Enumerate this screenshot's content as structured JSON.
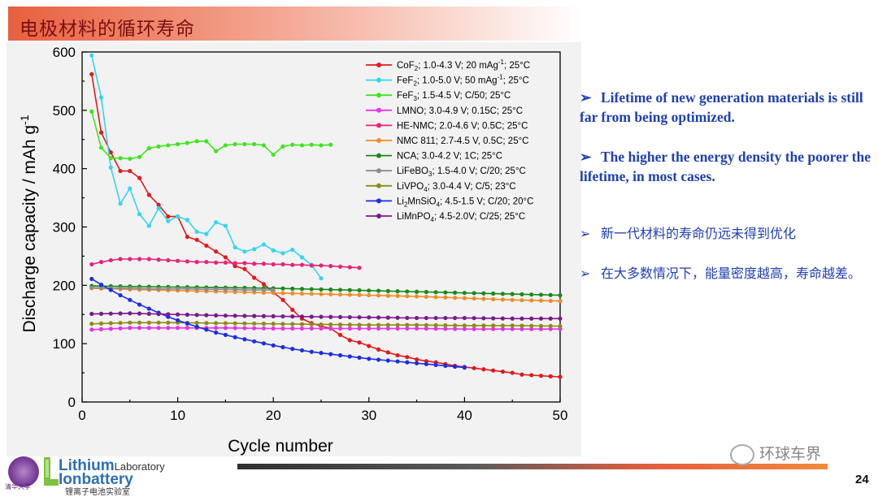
{
  "slide": {
    "title": "电极材料的循环寿命",
    "page_number": "24",
    "watermark": "环球车界",
    "logo": {
      "line1": "Lithium",
      "line1_suffix": "Laboratory",
      "line2": "Ionbattery",
      "cn": "锂离子电池实验室",
      "seal_text": "清华大学"
    },
    "bullets": [
      {
        "text": "Lifetime of new generation materials is still far from being optimized.",
        "lang": "en"
      },
      {
        "text": "The higher the energy density the poorer the lifetime, in most cases.",
        "lang": "en"
      },
      {
        "text": "新一代材料的寿命仍远未得到优化",
        "lang": "cn"
      },
      {
        "text": "在大多数情况下，能量密度越高，寿命越差。",
        "lang": "cn"
      }
    ],
    "bullet_marker": "➢"
  },
  "colors": {
    "title_text": "#7a1010",
    "bullet_text": "#1f3fb4",
    "accent_red": "#e35d3e"
  },
  "chart_data": {
    "type": "line",
    "title": "",
    "xlabel": "Cycle number",
    "ylabel": "Discharge capacity / mAh g-1",
    "xlim": [
      0,
      50
    ],
    "ylim": [
      0,
      600
    ],
    "xticks": [
      0,
      10,
      20,
      30,
      40,
      50
    ],
    "yticks": [
      0,
      100,
      200,
      300,
      400,
      500,
      600
    ],
    "legend_position": "top-right",
    "grid": false,
    "series": [
      {
        "name": "CoF2; 1.0-4.3 V; 20 mAg-1; 25°C",
        "color": "#e31a1c",
        "marker": "circle",
        "x": [
          1,
          2,
          3,
          4,
          5,
          6,
          7,
          8,
          9,
          10,
          11,
          12,
          13,
          14,
          15,
          16,
          17,
          18,
          19,
          20,
          21,
          22,
          23,
          24,
          25,
          26,
          27,
          28,
          29,
          30,
          31,
          32,
          33,
          34,
          35,
          36,
          37,
          38,
          39,
          40,
          41,
          42,
          43,
          44,
          45,
          46,
          47,
          48,
          49,
          50
        ],
        "y": [
          562,
          462,
          428,
          396,
          396,
          384,
          355,
          338,
          318,
          318,
          283,
          278,
          268,
          258,
          248,
          233,
          228,
          213,
          202,
          188,
          175,
          158,
          143,
          135,
          130,
          126,
          115,
          106,
          102,
          96,
          90,
          85,
          80,
          77,
          73,
          70,
          68,
          65,
          62,
          60,
          58,
          56,
          54,
          52,
          50,
          47,
          46,
          45,
          44,
          43
        ]
      },
      {
        "name": "FeF2; 1.0-5.0 V; 50 mAg-1; 25°C",
        "color": "#33d6f0",
        "marker": "circle",
        "x": [
          1,
          2,
          3,
          4,
          5,
          6,
          7,
          8,
          9,
          10,
          11,
          12,
          13,
          14,
          15,
          16,
          17,
          18,
          19,
          20,
          21,
          22,
          23,
          24,
          25
        ],
        "y": [
          594,
          522,
          402,
          340,
          366,
          322,
          302,
          332,
          310,
          318,
          312,
          292,
          288,
          308,
          302,
          265,
          258,
          262,
          270,
          260,
          255,
          261,
          248,
          235,
          212
        ]
      },
      {
        "name": "FeF3; 1.5-4.5 V; C/50; 25°C",
        "color": "#3fe61e",
        "marker": "circle",
        "x": [
          1,
          2,
          3,
          4,
          5,
          6,
          7,
          8,
          9,
          10,
          11,
          12,
          13,
          14,
          15,
          16,
          17,
          18,
          19,
          20,
          21,
          22,
          23,
          24,
          25,
          26
        ],
        "y": [
          498,
          436,
          418,
          418,
          417,
          420,
          435,
          438,
          440,
          442,
          444,
          447,
          447,
          430,
          440,
          442,
          442,
          442,
          440,
          424,
          438,
          441,
          440,
          441,
          440,
          441
        ]
      },
      {
        "name": "LMNO; 3.0-4.9 V; 0.15C; 25°C",
        "color": "#e832e8",
        "marker": "circle",
        "x": [
          1,
          5,
          10,
          15,
          20,
          25,
          30,
          35,
          40,
          45,
          50
        ],
        "y": [
          124,
          127,
          127,
          127,
          126,
          126,
          126,
          126,
          125,
          125,
          125
        ]
      },
      {
        "name": "HE-NMC; 2.0-4.6 V; 0.5C; 25°C",
        "color": "#e8227a",
        "marker": "circle",
        "x": [
          1,
          2,
          3,
          4,
          5,
          6,
          7,
          8,
          9,
          10,
          11,
          12,
          13,
          14,
          15,
          16,
          17,
          18,
          19,
          20,
          21,
          22,
          23,
          24,
          25,
          26,
          27,
          28,
          29
        ],
        "y": [
          236,
          240,
          243,
          245,
          245,
          245,
          245,
          244,
          243,
          242,
          241,
          240,
          240,
          239,
          239,
          238,
          238,
          237,
          237,
          236,
          236,
          235,
          235,
          234,
          234,
          233,
          232,
          231,
          230
        ]
      },
      {
        "name": "NMC 811; 2.7-4.5 V, 0.5C; 25°C",
        "color": "#f28c28",
        "marker": "circle",
        "x": [
          1,
          5,
          10,
          15,
          20,
          25,
          30,
          35,
          40,
          45,
          50
        ],
        "y": [
          195,
          193,
          191,
          189,
          187,
          185,
          183,
          181,
          178,
          175,
          173
        ]
      },
      {
        "name": "NCA; 3.0-4.2 V; 1C; 25°C",
        "color": "#1a8a1a",
        "marker": "circle",
        "x": [
          1,
          5,
          10,
          15,
          20,
          25,
          30,
          35,
          40,
          45,
          50
        ],
        "y": [
          199,
          198,
          197,
          196,
          195,
          193,
          191,
          189,
          187,
          185,
          183
        ]
      },
      {
        "name": "LiFeBO3; 1.5-4.0 V; C/20; 25°C",
        "color": "#8c8c8c",
        "marker": "circle",
        "x": [
          1,
          3,
          5,
          7,
          9,
          11,
          13,
          15,
          17,
          19,
          20
        ],
        "y": [
          196,
          195,
          195,
          194,
          194,
          194,
          193,
          193,
          192,
          192,
          192
        ]
      },
      {
        "name": "LiVPO4; 3.0-4.4 V; C/5; 23°C",
        "color": "#8c8c14",
        "marker": "circle",
        "x": [
          1,
          5,
          10,
          15,
          20,
          25,
          30,
          35,
          40,
          45,
          50
        ],
        "y": [
          134,
          136,
          136,
          135,
          134,
          133,
          132,
          132,
          131,
          131,
          130
        ]
      },
      {
        "name": "Li2MnSiO4; 4.5-1.5 V; C/20; 20°C",
        "color": "#1a2ee6",
        "marker": "circle",
        "x": [
          1,
          2,
          3,
          4,
          5,
          6,
          7,
          8,
          9,
          10,
          12,
          14,
          16,
          18,
          20,
          22,
          24,
          26,
          28,
          30,
          32,
          34,
          36,
          38,
          40
        ],
        "y": [
          211,
          201,
          192,
          183,
          175,
          167,
          160,
          153,
          146,
          140,
          129,
          119,
          111,
          104,
          97,
          91,
          86,
          82,
          78,
          74,
          71,
          68,
          65,
          62,
          59
        ]
      },
      {
        "name": "LiMnPO4; 4.5-2.0V; C/25; 25°C",
        "color": "#7a1a8c",
        "marker": "circle",
        "x": [
          1,
          5,
          10,
          15,
          20,
          25,
          30,
          35,
          40,
          45,
          50
        ],
        "y": [
          151,
          152,
          150,
          148,
          147,
          146,
          145,
          144,
          144,
          143,
          143
        ]
      }
    ],
    "legend_labels": [
      {
        "main": "CoF",
        "sub": "2",
        "rest": "; 1.0-4.3 V; 20 mAg",
        "sup": "-1",
        "tail": "; 25°C"
      },
      {
        "main": "FeF",
        "sub": "2",
        "rest": "; 1.0-5.0 V; 50 mAg",
        "sup": "-1",
        "tail": "; 25°C"
      },
      {
        "main": "FeF",
        "sub": "3",
        "rest": "; 1.5-4.5 V; C/50; 25°C",
        "sup": "",
        "tail": ""
      },
      {
        "main": "LMNO; 3.0-4.9 V; 0.15C; 25°C",
        "sub": "",
        "rest": "",
        "sup": "",
        "tail": ""
      },
      {
        "main": "HE-NMC; 2.0-4.6 V; 0.5C; 25°C",
        "sub": "",
        "rest": "",
        "sup": "",
        "tail": ""
      },
      {
        "main": "NMC 811; 2.7-4.5 V, 0.5C; 25°C",
        "sub": "",
        "rest": "",
        "sup": "",
        "tail": ""
      },
      {
        "main": "NCA; 3.0-4.2 V; 1C; 25°C",
        "sub": "",
        "rest": "",
        "sup": "",
        "tail": ""
      },
      {
        "main": "LiFeBO",
        "sub": "3",
        "rest": "; 1.5-4.0 V; C/20; 25°C",
        "sup": "",
        "tail": ""
      },
      {
        "main": "LiVPO",
        "sub": "4",
        "rest": "; 3.0-4.4 V; C/5; 23°C",
        "sup": "",
        "tail": ""
      },
      {
        "main": "Li",
        "sub": "2",
        "rest": "MnSiO",
        "sub2": "4",
        "rest2": "; 4.5-1.5 V; C/20; 20°C",
        "sup": "",
        "tail": ""
      },
      {
        "main": "LiMnPO",
        "sub": "4",
        "rest": "; 4.5-2.0V; C/25; 25°C",
        "sup": "",
        "tail": ""
      }
    ],
    "ylabel_parts": {
      "text": "Discharge capacity / mAh g",
      "sup": "-1"
    }
  }
}
